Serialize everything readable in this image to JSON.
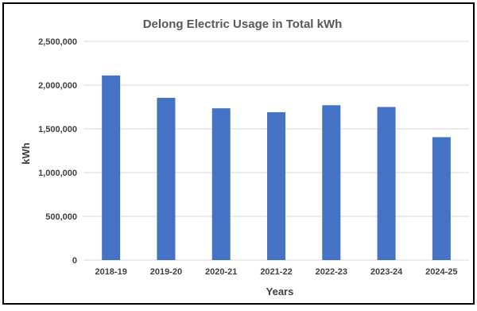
{
  "chart_data": {
    "type": "bar",
    "title": "Delong Electric Usage in Total kWh",
    "xlabel": "Years",
    "ylabel": "kWh",
    "categories": [
      "2018-19",
      "2019-20",
      "2020-21",
      "2021-22",
      "2022-23",
      "2023-24",
      "2024-25"
    ],
    "values": [
      2110000,
      1855000,
      1735000,
      1690000,
      1770000,
      1750000,
      1405000
    ],
    "ylim": [
      0,
      2500000
    ],
    "yticks": [
      0,
      500000,
      1000000,
      1500000,
      2000000,
      2500000
    ],
    "ytick_labels": [
      "0",
      "500,000",
      "1,000,000",
      "1,500,000",
      "2,000,000",
      "2,500,000"
    ],
    "grid": true,
    "legend": "none",
    "bar_color": "#4472C4",
    "grid_color": "#D9D9D9"
  }
}
